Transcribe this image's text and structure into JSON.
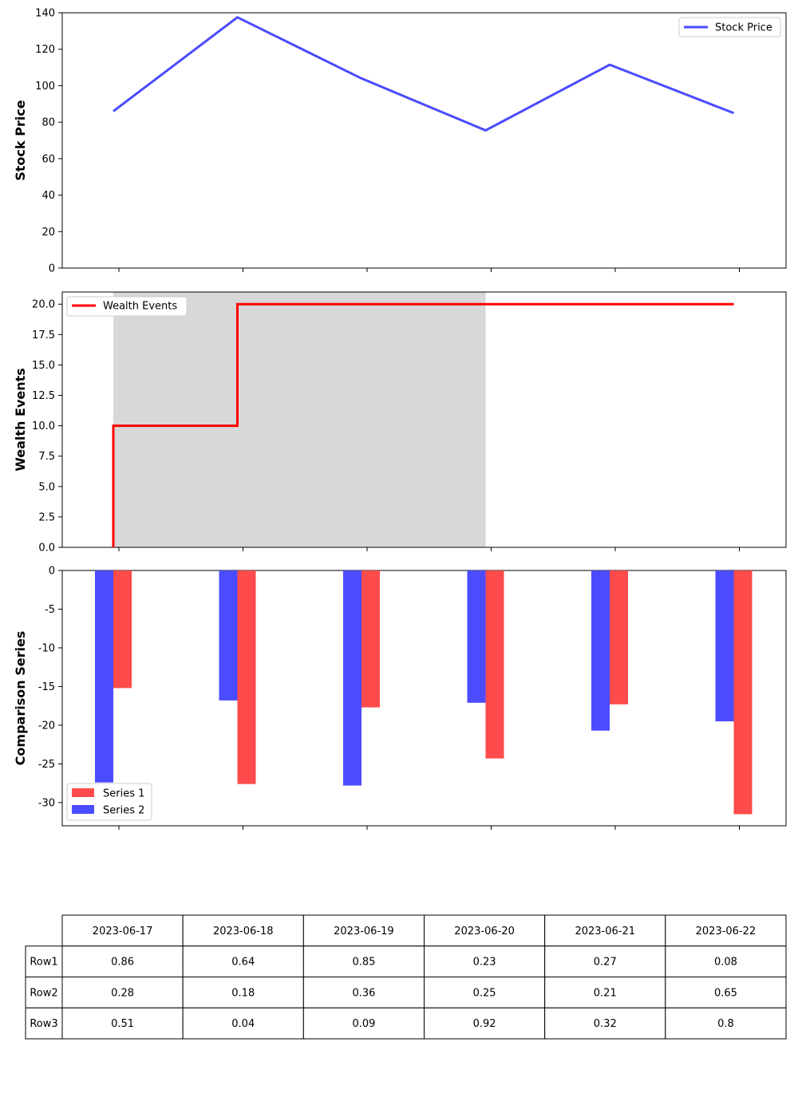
{
  "chart_data": [
    {
      "type": "line",
      "ylabel": "Stock Price",
      "ylim": [
        0,
        140
      ],
      "yticks": [
        0,
        20,
        40,
        60,
        80,
        100,
        120,
        140
      ],
      "x": [
        "2023-06-17",
        "2023-06-18",
        "2023-06-19",
        "2023-06-20",
        "2023-06-21",
        "2023-06-22"
      ],
      "series": [
        {
          "name": "Stock Price",
          "values": [
            86,
            137.5,
            104,
            75.5,
            111.5,
            85
          ],
          "color": "#4b4bff"
        }
      ],
      "legend": "top-right",
      "grid": false
    },
    {
      "type": "line",
      "ylabel": "Wealth Events",
      "ylim": [
        0,
        21
      ],
      "yticks": [
        "0.0",
        "2.5",
        "5.0",
        "7.5",
        "10.0",
        "12.5",
        "15.0",
        "17.5",
        "20.0"
      ],
      "x": [
        "2023-06-17",
        "2023-06-18",
        "2023-06-19",
        "2023-06-20",
        "2023-06-21",
        "2023-06-22"
      ],
      "series": [
        {
          "name": "Wealth Events",
          "step": "pre",
          "values": [
            0,
            10,
            20,
            20,
            20,
            20
          ],
          "color": "#ff0000"
        }
      ],
      "shaded_span": {
        "from": "2023-06-17",
        "to": "2023-06-20",
        "color": "#d8d8d8"
      },
      "legend": "top-left",
      "grid": false
    },
    {
      "type": "bar",
      "ylabel": "Comparison Series",
      "ylim": [
        -33,
        0
      ],
      "yticks": [
        0,
        -5,
        -10,
        -15,
        -20,
        -25,
        -30
      ],
      "categories": [
        "2023-06-17",
        "2023-06-18",
        "2023-06-19",
        "2023-06-20",
        "2023-06-21",
        "2023-06-22"
      ],
      "series": [
        {
          "name": "Series 1",
          "values": [
            -15.2,
            -27.6,
            -17.7,
            -24.3,
            -17.3,
            -31.5
          ],
          "color": "#ff4b4b"
        },
        {
          "name": "Series 2",
          "values": [
            -27.4,
            -16.8,
            -27.8,
            -17.1,
            -20.7,
            -19.5
          ],
          "color": "#4b4bff"
        }
      ],
      "legend": "bottom-left",
      "grid": false
    },
    {
      "type": "table",
      "columns": [
        "2023-06-17",
        "2023-06-18",
        "2023-06-19",
        "2023-06-20",
        "2023-06-21",
        "2023-06-22"
      ],
      "rows": [
        {
          "label": "Row1",
          "values": [
            "0.86",
            "0.64",
            "0.85",
            "0.23",
            "0.27",
            "0.08"
          ]
        },
        {
          "label": "Row2",
          "values": [
            "0.28",
            "0.18",
            "0.36",
            "0.25",
            "0.21",
            "0.65"
          ]
        },
        {
          "label": "Row3",
          "values": [
            "0.51",
            "0.04",
            "0.09",
            "0.92",
            "0.32",
            "0.8"
          ]
        }
      ]
    }
  ]
}
